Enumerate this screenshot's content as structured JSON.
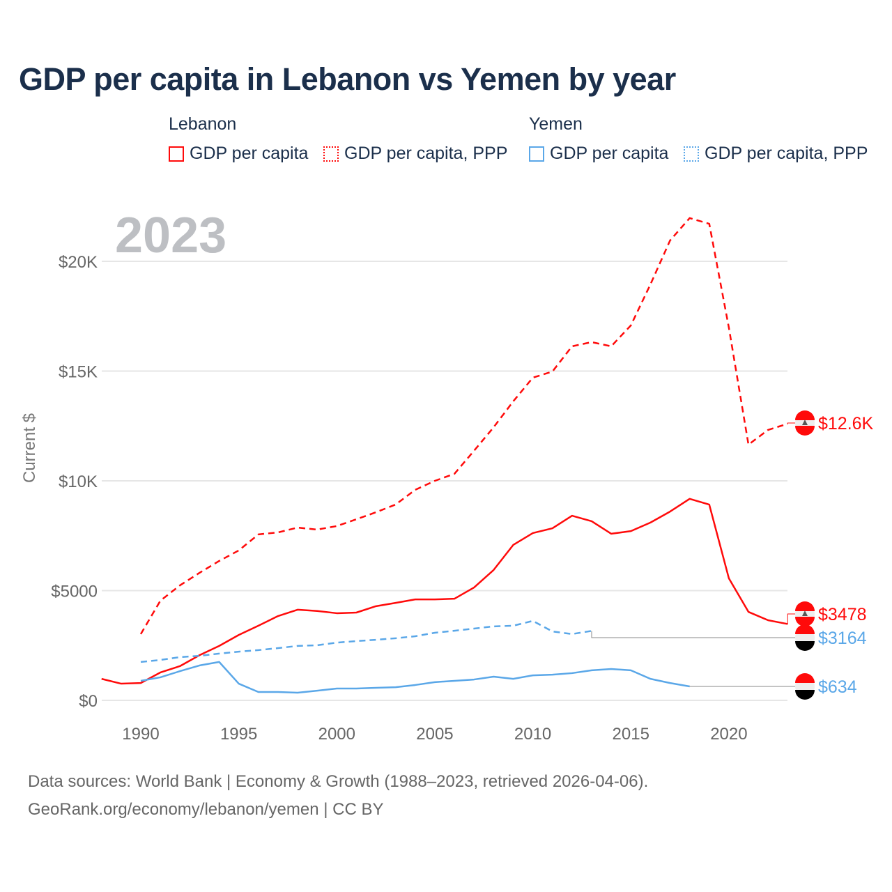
{
  "title": "GDP per capita in Lebanon vs Yemen by year",
  "legend": {
    "groups": [
      {
        "name": "Lebanon",
        "items": [
          "GDP per capita",
          "GDP per capita, PPP"
        ]
      },
      {
        "name": "Yemen",
        "items": [
          "GDP per capita",
          "GDP per capita, PPP"
        ]
      }
    ]
  },
  "colors": {
    "lebanon": "#ff0a0a",
    "yemen": "#5aa7e8"
  },
  "year_label": "2023",
  "chart_data": {
    "type": "line",
    "title": "GDP per capita in Lebanon vs Yemen by year",
    "xlabel": "",
    "ylabel": "Current $",
    "xlim": [
      1988,
      2023
    ],
    "ylim": [
      0,
      22500
    ],
    "x_ticks": [
      1990,
      1995,
      2000,
      2005,
      2010,
      2015,
      2020
    ],
    "x_tick_labels": [
      "1990",
      "1995",
      "2000",
      "2005",
      "2010",
      "2015",
      "2020"
    ],
    "y_ticks": [
      0,
      5000,
      10000,
      15000,
      20000
    ],
    "y_tick_labels": [
      "$0",
      "$5000",
      "$10K",
      "$15K",
      "$20K"
    ],
    "grid": true,
    "legend_position": "top",
    "series": [
      {
        "name": "Lebanon GDP per capita",
        "country": "lebanon",
        "dashed": false,
        "start": 1988,
        "values": [
          980,
          760,
          790,
          1270,
          1560,
          2060,
          2480,
          2980,
          3400,
          3840,
          4130,
          4070,
          3970,
          4000,
          4290,
          4440,
          4600,
          4600,
          4630,
          5140,
          5940,
          7080,
          7620,
          7840,
          8410,
          8160,
          7590,
          7710,
          8100,
          8600,
          9180,
          8920,
          5560,
          4030,
          3650,
          3478
        ],
        "end_label": "$3478"
      },
      {
        "name": "Lebanon GDP per capita, PPP",
        "country": "lebanon",
        "dashed": true,
        "start": 1990,
        "values": [
          3020,
          4540,
          5240,
          5810,
          6350,
          6830,
          7560,
          7650,
          7870,
          7780,
          7940,
          8250,
          8570,
          8920,
          9590,
          10000,
          10320,
          11370,
          12440,
          13620,
          14700,
          14980,
          16130,
          16320,
          16130,
          17080,
          18950,
          20950,
          21970,
          21710,
          16980,
          11650,
          12320,
          12600
        ],
        "end_label": "$12.6K"
      },
      {
        "name": "Yemen GDP per capita",
        "country": "yemen",
        "dashed": false,
        "start": 1990,
        "values": [
          890,
          1050,
          1330,
          1590,
          1750,
          760,
          380,
          380,
          350,
          440,
          540,
          540,
          570,
          600,
          700,
          830,
          890,
          950,
          1080,
          980,
          1140,
          1170,
          1240,
          1370,
          1430,
          1370,
          980,
          790,
          634
        ],
        "end_label": "$634"
      },
      {
        "name": "Yemen GDP per capita, PPP",
        "country": "yemen",
        "dashed": true,
        "start": 1990,
        "values": [
          1750,
          1840,
          1970,
          2030,
          2130,
          2220,
          2290,
          2380,
          2480,
          2510,
          2630,
          2700,
          2760,
          2830,
          2920,
          3080,
          3170,
          3270,
          3370,
          3400,
          3620,
          3140,
          3020,
          3164
        ],
        "end_label": "$3164"
      }
    ]
  },
  "source": {
    "line1": "Data sources: World Bank | Economy & Growth (1988–2023, retrieved 2026-04-06).",
    "line2": "GeoRank.org/economy/lebanon/yemen | CC BY"
  }
}
